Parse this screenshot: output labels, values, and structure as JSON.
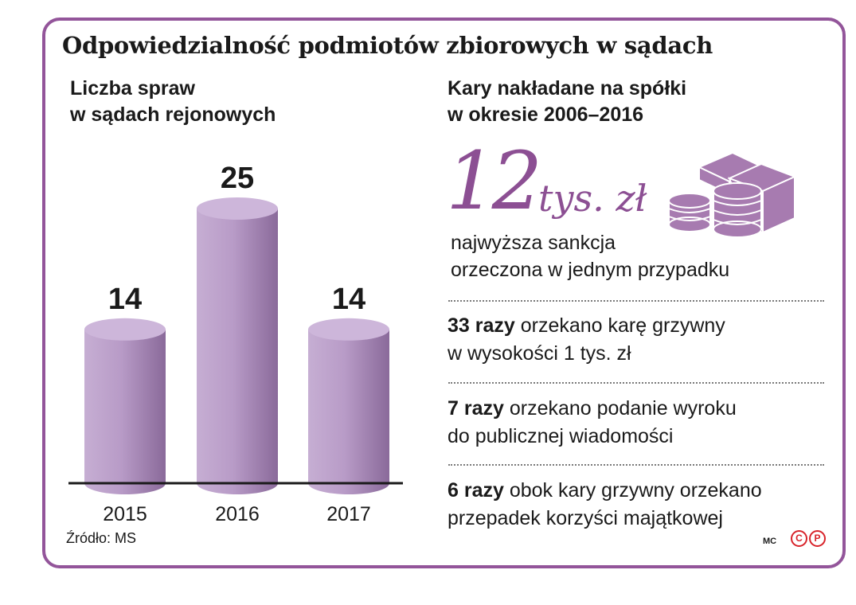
{
  "title": "Odpowiedzialność podmiotów zbiorowych w sądach",
  "left_panel": {
    "subtitle_line1": "Liczba spraw",
    "subtitle_line2": "w sądach rejonowych",
    "source": "Źródło: MS"
  },
  "chart_data": {
    "type": "bar",
    "title": "Liczba spraw w sądach rejonowych",
    "categories": [
      "2015",
      "2016",
      "2017"
    ],
    "values": [
      14,
      25,
      14
    ],
    "data_labels": [
      "14",
      "25",
      "14"
    ],
    "xlabel": "",
    "ylabel": "",
    "grid": false,
    "bar_style": "3d-cylinder",
    "bar_color": "#b89bc7"
  },
  "right_panel": {
    "subtitle_line1": "Kary nakładane na spółki",
    "subtitle_line2": "w okresie 2006–2016",
    "big_number": "12",
    "big_unit": "tys. zł",
    "big_desc_line1": "najwyższa sankcja",
    "big_desc_line2": "orzeczona w jednym przypadku",
    "stats": [
      {
        "bold": "33 razy",
        "line1_rest": " orzekano karę grzywny",
        "line2": "w wysokości 1 tys. zł"
      },
      {
        "bold": "7 razy",
        "line1_rest": " orzekano podanie wyroku",
        "line2": "do publicznej wiadomości"
      },
      {
        "bold": "6 razy",
        "line1_rest": " obok kary grzywny orzekano",
        "line2": "przepadek korzyści majątkowej"
      }
    ],
    "icon": "money-stack-icon"
  },
  "footer": {
    "credit": "MC",
    "logo_c": "C",
    "logo_p": "P"
  },
  "colors": {
    "accent": "#8c4f93",
    "frame": "#93559a",
    "bar_light": "#c4aad1",
    "bar_dark": "#8d6c9c",
    "icon": "#a77bb0",
    "logo": "#d8232a"
  }
}
